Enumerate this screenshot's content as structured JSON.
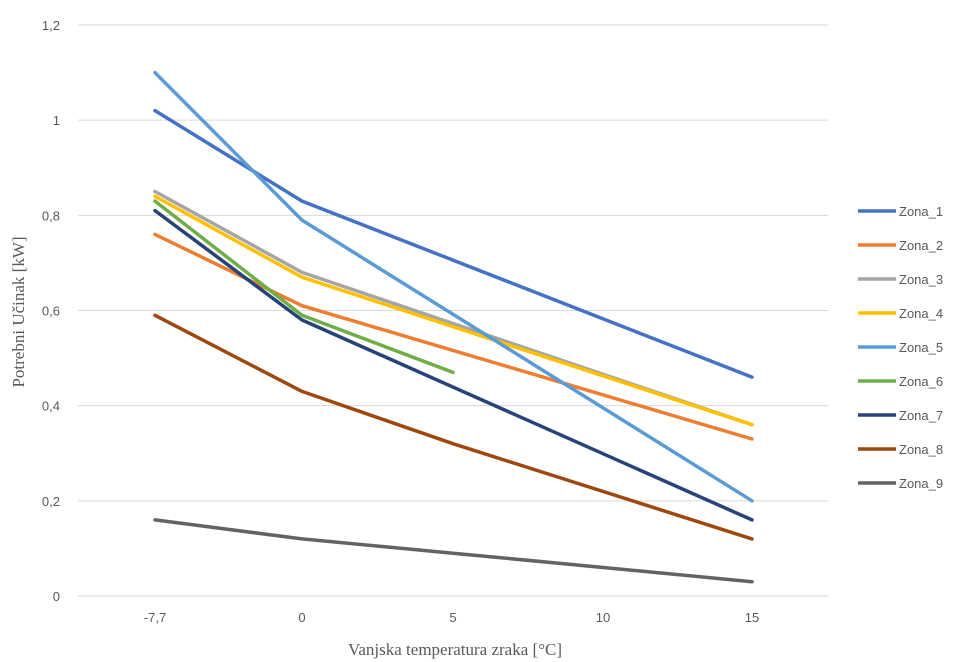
{
  "chart_data": {
    "type": "line",
    "xlabel": "Vanjska temperatura zraka [°C]",
    "ylabel": "Potrebni Učinak [kW]",
    "categories": [
      "-7,7",
      "0",
      "5",
      "10",
      "15"
    ],
    "x": [
      -7.7,
      0,
      5,
      10,
      15
    ],
    "ylim": [
      0,
      1.2
    ],
    "yticks": [
      "0",
      "0,2",
      "0,4",
      "0,6",
      "0,8",
      "1",
      "1,2"
    ],
    "ytick_values": [
      0,
      0.2,
      0.4,
      0.6,
      0.8,
      1.0,
      1.2
    ],
    "grid": true,
    "legend_position": "right",
    "series": [
      {
        "name": "Zona_1",
        "color": "#4472c4",
        "points": [
          [
            -7.7,
            1.02
          ],
          [
            0,
            0.83
          ],
          [
            15,
            0.46
          ]
        ]
      },
      {
        "name": "Zona_2",
        "color": "#ed7d31",
        "points": [
          [
            -7.7,
            0.76
          ],
          [
            0,
            0.61
          ],
          [
            15,
            0.33
          ]
        ]
      },
      {
        "name": "Zona_3",
        "color": "#a5a5a5",
        "points": [
          [
            -7.7,
            0.85
          ],
          [
            0,
            0.68
          ],
          [
            15,
            0.36
          ]
        ]
      },
      {
        "name": "Zona_4",
        "color": "#ffc000",
        "points": [
          [
            -7.7,
            0.84
          ],
          [
            0,
            0.67
          ],
          [
            15,
            0.36
          ]
        ]
      },
      {
        "name": "Zona_5",
        "color": "#5b9bd5",
        "points": [
          [
            -7.7,
            1.1
          ],
          [
            0,
            0.79
          ],
          [
            15,
            0.2
          ]
        ]
      },
      {
        "name": "Zona_6",
        "color": "#70ad47",
        "points": [
          [
            -7.7,
            0.83
          ],
          [
            0,
            0.59
          ],
          [
            5,
            0.47
          ]
        ]
      },
      {
        "name": "Zona_7",
        "color": "#264478",
        "points": [
          [
            -7.7,
            0.81
          ],
          [
            0,
            0.58
          ],
          [
            15,
            0.16
          ]
        ]
      },
      {
        "name": "Zona_8",
        "color": "#9e480e",
        "points": [
          [
            -7.7,
            0.59
          ],
          [
            0,
            0.43
          ],
          [
            5,
            0.32
          ],
          [
            15,
            0.12
          ]
        ]
      },
      {
        "name": "Zona_9",
        "color": "#636363",
        "points": [
          [
            -7.7,
            0.16
          ],
          [
            0,
            0.12
          ],
          [
            5,
            0.09
          ],
          [
            15,
            0.03
          ]
        ]
      }
    ]
  }
}
